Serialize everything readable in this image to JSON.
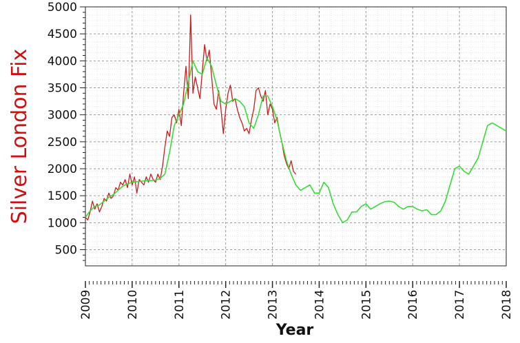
{
  "chart_data": {
    "type": "line",
    "title": "",
    "xlabel": "Year",
    "ylabel": "Silver London Fix",
    "xlim": [
      2009,
      2018
    ],
    "ylim": [
      200,
      5000
    ],
    "x_ticks": [
      "2009",
      "2010",
      "2011",
      "2012",
      "2013",
      "2014",
      "2015",
      "2016",
      "2017",
      "2018"
    ],
    "y_ticks": [
      "500",
      "1000",
      "1500",
      "2000",
      "2500",
      "3000",
      "3500",
      "4000",
      "4500",
      "5000"
    ],
    "grid": true,
    "series": [
      {
        "name": "",
        "color": "#d01818",
        "x": [
          2009.0,
          2009.05,
          2009.1,
          2009.15,
          2009.2,
          2009.25,
          2009.3,
          2009.35,
          2009.4,
          2009.45,
          2009.5,
          2009.55,
          2009.6,
          2009.65,
          2009.7,
          2009.75,
          2009.8,
          2009.85,
          2009.9,
          2009.95,
          2010.0,
          2010.05,
          2010.1,
          2010.15,
          2010.2,
          2010.25,
          2010.3,
          2010.35,
          2010.4,
          2010.45,
          2010.5,
          2010.55,
          2010.6,
          2010.65,
          2010.7,
          2010.75,
          2010.8,
          2010.85,
          2010.9,
          2010.95,
          2011.0,
          2011.05,
          2011.1,
          2011.15,
          2011.2,
          2011.25,
          2011.3,
          2011.35,
          2011.4,
          2011.45,
          2011.5,
          2011.55,
          2011.6,
          2011.65,
          2011.7,
          2011.75,
          2011.8,
          2011.85,
          2011.9,
          2011.95,
          2012.0,
          2012.05,
          2012.1,
          2012.15,
          2012.2,
          2012.25,
          2012.3,
          2012.35,
          2012.4,
          2012.45,
          2012.5,
          2012.55,
          2012.6,
          2012.65,
          2012.7,
          2012.75,
          2012.8,
          2012.85,
          2012.9,
          2012.95,
          2013.0,
          2013.05,
          2013.1,
          2013.15,
          2013.2,
          2013.25,
          2013.3,
          2013.35,
          2013.4,
          2013.45,
          2013.5
        ],
        "values": [
          1100,
          1050,
          1200,
          1400,
          1250,
          1350,
          1200,
          1300,
          1450,
          1400,
          1550,
          1450,
          1500,
          1650,
          1600,
          1750,
          1700,
          1800,
          1650,
          1900,
          1700,
          1850,
          1550,
          1800,
          1750,
          1700,
          1850,
          1750,
          1900,
          1800,
          1750,
          1900,
          1800,
          2050,
          2400,
          2700,
          2600,
          2950,
          3000,
          2850,
          3100,
          2800,
          3400,
          3900,
          3300,
          4850,
          3400,
          3700,
          3500,
          3300,
          3800,
          4300,
          4000,
          4200,
          3700,
          3200,
          3100,
          3450,
          3100,
          2650,
          3100,
          3400,
          3550,
          3250,
          3300,
          3100,
          2950,
          2850,
          2700,
          2750,
          2650,
          2900,
          3100,
          3450,
          3500,
          3350,
          3250,
          3450,
          3000,
          3200,
          3100,
          2850,
          2950,
          2700,
          2500,
          2250,
          2100,
          2000,
          2150,
          1950,
          1900
        ]
      },
      {
        "name": "",
        "color": "#33dd33",
        "x": [
          2009.0,
          2009.1,
          2009.2,
          2009.3,
          2009.4,
          2009.5,
          2009.6,
          2009.7,
          2009.8,
          2009.9,
          2010.0,
          2010.1,
          2010.2,
          2010.3,
          2010.4,
          2010.5,
          2010.6,
          2010.7,
          2010.8,
          2010.9,
          2011.0,
          2011.1,
          2011.2,
          2011.3,
          2011.4,
          2011.5,
          2011.6,
          2011.7,
          2011.8,
          2011.9,
          2012.0,
          2012.1,
          2012.2,
          2012.3,
          2012.4,
          2012.5,
          2012.6,
          2012.7,
          2012.8,
          2012.9,
          2013.0,
          2013.1,
          2013.2,
          2013.3,
          2013.4,
          2013.5,
          2013.6,
          2013.7,
          2013.8,
          2013.9,
          2014.0,
          2014.1,
          2014.2,
          2014.3,
          2014.4,
          2014.5,
          2014.6,
          2014.7,
          2014.8,
          2014.9,
          2015.0,
          2015.1,
          2015.2,
          2015.3,
          2015.4,
          2015.5,
          2015.6,
          2015.7,
          2015.8,
          2015.9,
          2016.0,
          2016.1,
          2016.2,
          2016.3,
          2016.4,
          2016.5,
          2016.6,
          2016.7,
          2016.8,
          2016.9,
          2017.0,
          2017.1,
          2017.2,
          2017.3,
          2017.4,
          2017.5,
          2017.6,
          2017.7,
          2017.8,
          2017.9,
          2018.0
        ],
        "values": [
          1100,
          1220,
          1300,
          1330,
          1400,
          1470,
          1520,
          1600,
          1680,
          1720,
          1750,
          1760,
          1770,
          1775,
          1780,
          1790,
          1820,
          1900,
          2300,
          2800,
          3000,
          3200,
          3600,
          4000,
          3800,
          3750,
          4050,
          3900,
          3550,
          3250,
          3200,
          3250,
          3300,
          3250,
          3150,
          2850,
          2750,
          3000,
          3350,
          3350,
          3150,
          2900,
          2500,
          2150,
          1900,
          1700,
          1600,
          1650,
          1700,
          1550,
          1550,
          1750,
          1650,
          1350,
          1150,
          1000,
          1050,
          1200,
          1200,
          1300,
          1350,
          1250,
          1300,
          1350,
          1390,
          1400,
          1380,
          1300,
          1250,
          1300,
          1300,
          1250,
          1220,
          1240,
          1150,
          1150,
          1220,
          1400,
          1700,
          2000,
          2050,
          1950,
          1900,
          2050,
          2200,
          2500,
          2800,
          2850,
          2800,
          2750,
          2700
        ]
      }
    ]
  }
}
